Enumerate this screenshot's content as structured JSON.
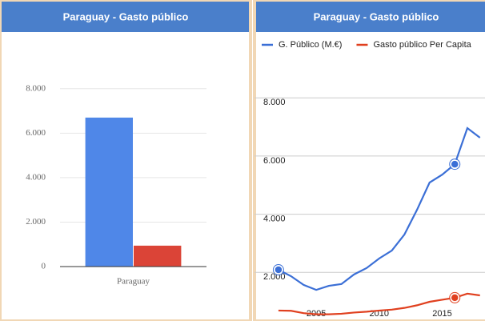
{
  "chart_data": [
    {
      "type": "bar",
      "title": "Paraguay - Gasto público",
      "categories": [
        "Paraguay"
      ],
      "series": [
        {
          "color": "#4f87e8",
          "values": [
            6700
          ]
        },
        {
          "color": "#db4437",
          "values": [
            940
          ]
        }
      ],
      "ylim": [
        0,
        9000
      ],
      "yticks": [
        0,
        {
          "value": 2000,
          "label": "2.000"
        },
        {
          "value": 4000,
          "label": "4.000"
        },
        {
          "value": 6000,
          "label": "6.000"
        },
        {
          "value": 8000,
          "label": "8.000"
        }
      ],
      "grid": true
    },
    {
      "type": "line",
      "title": "Paraguay - Gasto público",
      "x": [
        2002,
        2003,
        2004,
        2005,
        2006,
        2007,
        2008,
        2009,
        2010,
        2011,
        2012,
        2013,
        2014,
        2015,
        2016,
        2017,
        2018
      ],
      "series": [
        {
          "name": "G. Público (M.€)",
          "color": "#3b6fd6",
          "markers": [
            2002,
            2016
          ],
          "values": [
            2090,
            1870,
            1570,
            1400,
            1540,
            1600,
            1930,
            2150,
            2480,
            2750,
            3300,
            4150,
            5090,
            5360,
            5720,
            6960,
            6630
          ]
        },
        {
          "name": "Gasto público Per Capita",
          "color": "#e0401f",
          "markers": [
            2016
          ],
          "values": [
            690,
            680,
            600,
            560,
            560,
            580,
            620,
            650,
            690,
            720,
            780,
            870,
            990,
            1060,
            1130,
            1270,
            1210
          ]
        }
      ],
      "xlim": [
        2000.1,
        2018.4
      ],
      "xticks": [
        2005,
        2010,
        2015
      ],
      "ylim": [
        330,
        9300
      ],
      "yticks": [
        {
          "value": 2000,
          "label": "2.000"
        },
        {
          "value": 4000,
          "label": "4.000"
        },
        {
          "value": 6000,
          "label": "6.000"
        },
        {
          "value": 8000,
          "label": "8.000"
        }
      ],
      "grid": true,
      "legend": "top"
    }
  ]
}
